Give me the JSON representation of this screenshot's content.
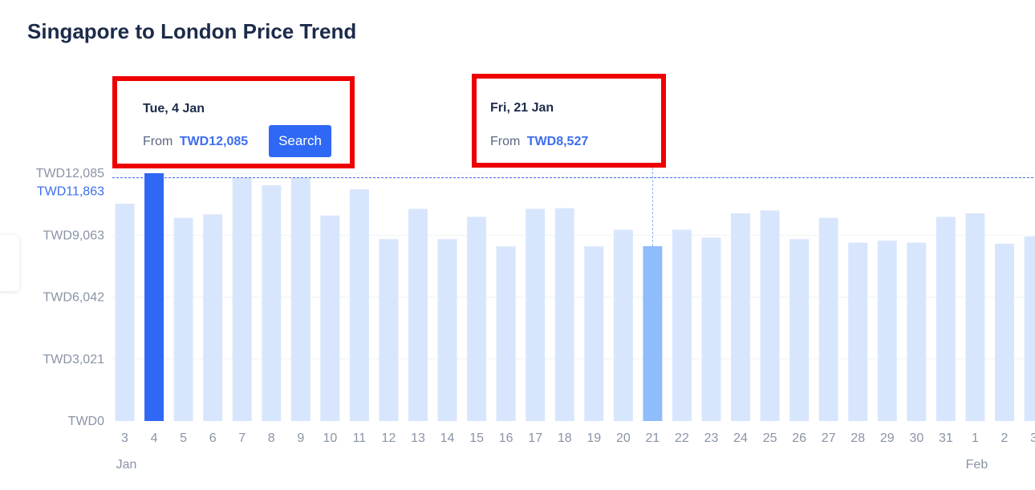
{
  "page": {
    "title": "Singapore to London Price Trend"
  },
  "tooltips": [
    {
      "date": "Tue, 4 Jan",
      "from_label": "From",
      "price": "TWD12,085",
      "button_label": "Search"
    },
    {
      "date": "Fri, 21 Jan",
      "from_label": "From",
      "price": "TWD8,527"
    }
  ],
  "colors": {
    "bar_default": "#d8e6fd",
    "bar_selected": "#2f68f4",
    "bar_hover": "#8fbcfb",
    "reference_line": "#3d6ef0",
    "highlight_border": "#ee0000",
    "title": "#1c2b4a",
    "axis_text": "#8a94a6"
  },
  "chart_data": {
    "type": "bar",
    "title": "Singapore to London Price Trend",
    "currency": "TWD",
    "categories": [
      "3",
      "4",
      "5",
      "6",
      "7",
      "8",
      "9",
      "10",
      "11",
      "12",
      "13",
      "14",
      "15",
      "16",
      "17",
      "18",
      "19",
      "20",
      "21",
      "22",
      "23",
      "24",
      "25",
      "26",
      "27",
      "28",
      "29",
      "30",
      "31",
      "1",
      "2",
      "3"
    ],
    "month_labels": [
      {
        "label": "Jan",
        "category_index": 0
      },
      {
        "label": "Feb",
        "category_index": 29
      }
    ],
    "values": [
      10600,
      12085,
      9910,
      10080,
      11860,
      11500,
      11860,
      10020,
      11300,
      8870,
      10350,
      8870,
      9960,
      8520,
      10350,
      10380,
      8520,
      9330,
      8527,
      9330,
      8950,
      10130,
      10270,
      8870,
      9910,
      8700,
      8800,
      8700,
      9960,
      10130,
      8650,
      9000
    ],
    "selected_index": 1,
    "hover_index": 18,
    "reference_line": {
      "value": 11863,
      "label": "TWD11,863"
    },
    "y_ticks": [
      {
        "value": 0,
        "label": "TWD0"
      },
      {
        "value": 3021,
        "label": "TWD3,021"
      },
      {
        "value": 6042,
        "label": "TWD6,042"
      },
      {
        "value": 9063,
        "label": "TWD9,063"
      },
      {
        "value": 11863,
        "label": "TWD11,863"
      },
      {
        "value": 12085,
        "label": "TWD12,085"
      }
    ],
    "ylim": [
      0,
      12085
    ],
    "grid": true
  }
}
